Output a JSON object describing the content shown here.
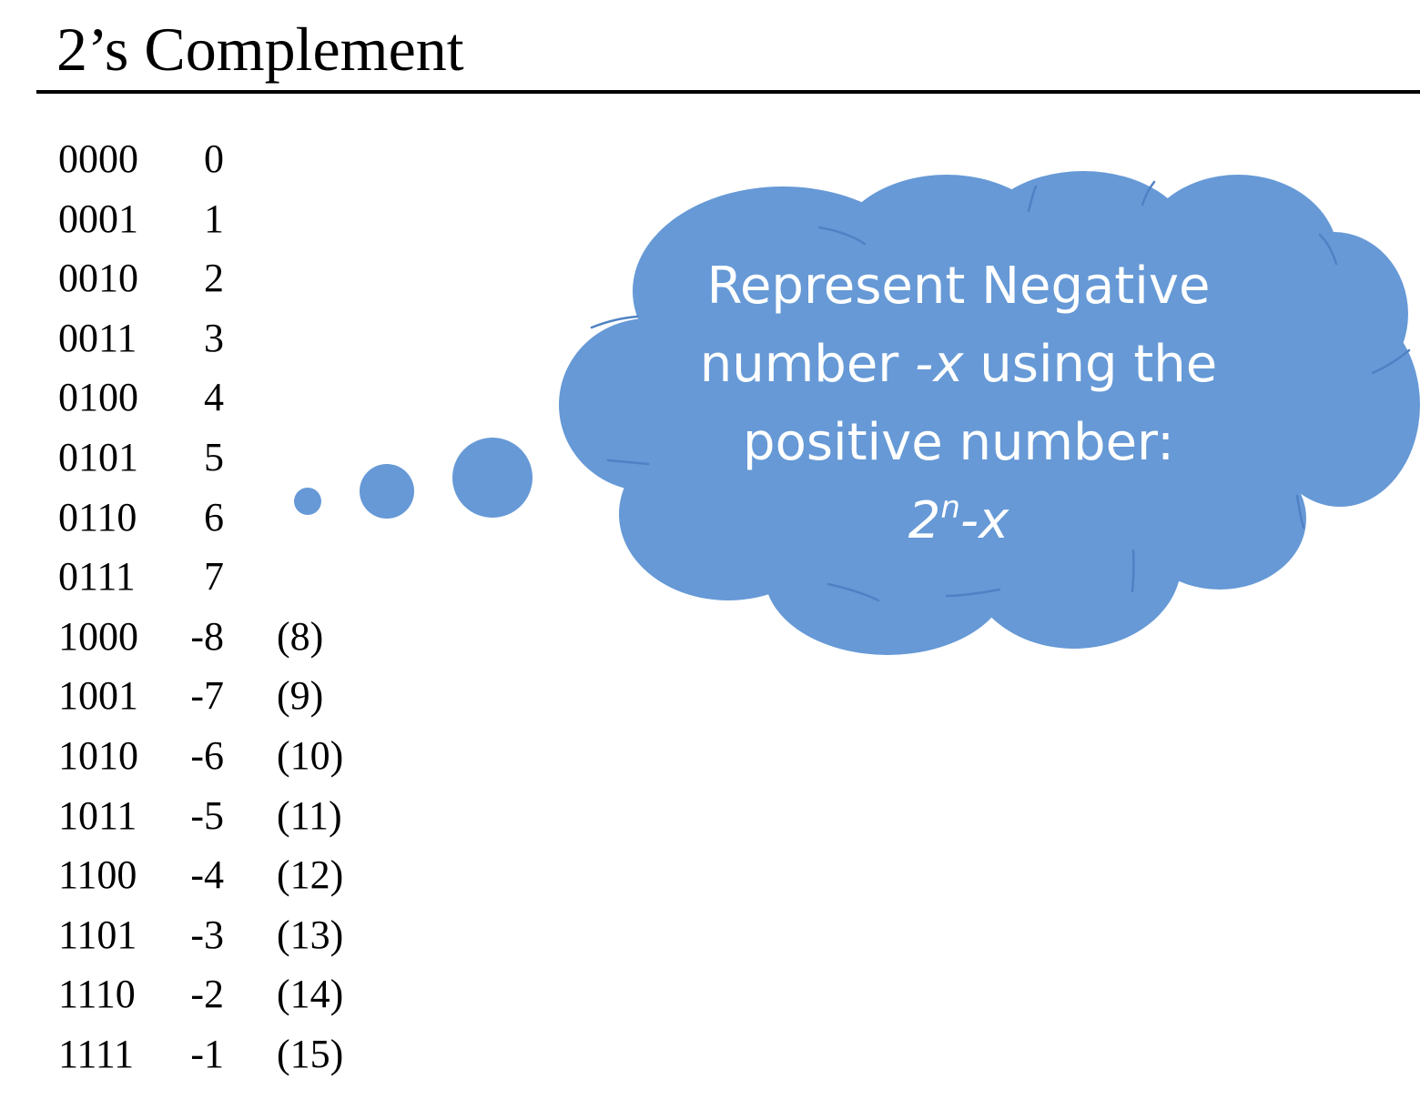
{
  "title": "2’s Complement",
  "rows": [
    {
      "bits": "0000",
      "value": "0",
      "unsigned": ""
    },
    {
      "bits": "0001",
      "value": "1",
      "unsigned": ""
    },
    {
      "bits": "0010",
      "value": "2",
      "unsigned": ""
    },
    {
      "bits": "0011",
      "value": "3",
      "unsigned": ""
    },
    {
      "bits": "0100",
      "value": "4",
      "unsigned": ""
    },
    {
      "bits": "0101",
      "value": "5",
      "unsigned": ""
    },
    {
      "bits": "0110",
      "value": "6",
      "unsigned": ""
    },
    {
      "bits": "0111",
      "value": "7",
      "unsigned": ""
    },
    {
      "bits": "1000",
      "value": "-8",
      "unsigned": "(8)"
    },
    {
      "bits": "1001",
      "value": "-7",
      "unsigned": "(9)"
    },
    {
      "bits": "1010",
      "value": "-6",
      "unsigned": "(10)"
    },
    {
      "bits": "1011",
      "value": "-5",
      "unsigned": "(11)"
    },
    {
      "bits": "1100",
      "value": "-4",
      "unsigned": "(12)"
    },
    {
      "bits": "1101",
      "value": "-3",
      "unsigned": "(13)"
    },
    {
      "bits": "1110",
      "value": "-2",
      "unsigned": "(14)"
    },
    {
      "bits": "1111",
      "value": "-1",
      "unsigned": "(15)"
    }
  ],
  "cloud": {
    "line1": "Represent Negative",
    "line2_pre": "number ",
    "line2_var": "-x",
    "line2_post": " using the",
    "line3": "positive number:",
    "formula_base": "2",
    "formula_exp": "n",
    "formula_tail": "-x",
    "fill_color": "#6699d6",
    "text_color": "#ffffff"
  }
}
